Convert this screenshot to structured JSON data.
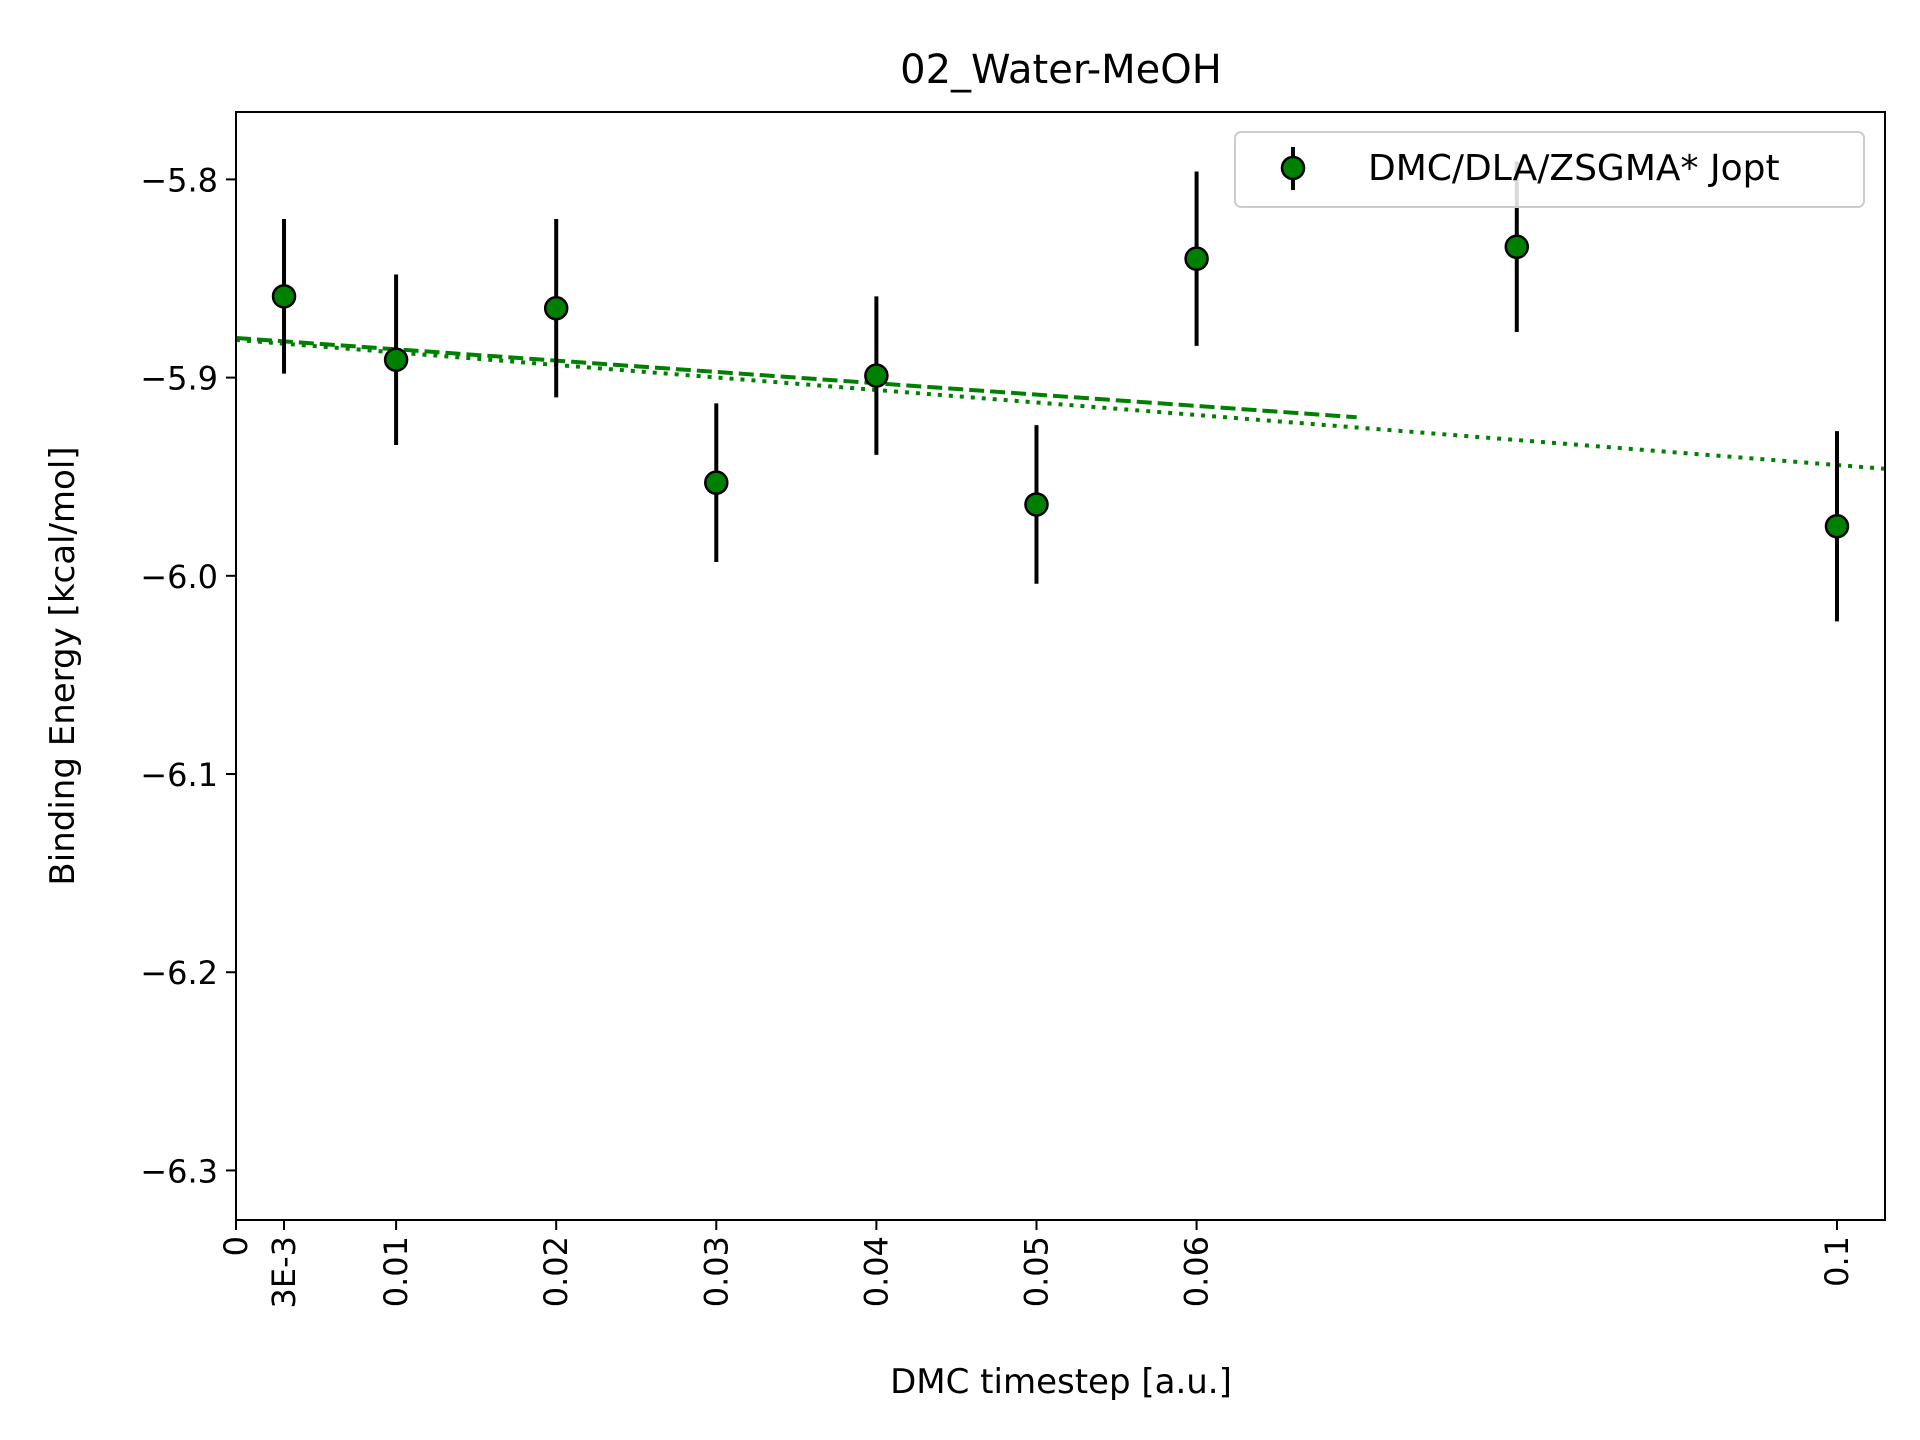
{
  "chart_data": {
    "type": "scatter",
    "title": "02_Water-MeOH",
    "xlabel": "DMC timestep [a.u.]",
    "ylabel": "Binding Energy [kcal/mol]",
    "xlim": [
      0,
      0.103
    ],
    "ylim": [
      -6.325,
      -5.766
    ],
    "grid": false,
    "legend_position": "top-right",
    "x_ticks": [
      {
        "value": 0,
        "label": "0"
      },
      {
        "value": 0.003,
        "label": "3E-3"
      },
      {
        "value": 0.01,
        "label": "0.01"
      },
      {
        "value": 0.02,
        "label": "0.02"
      },
      {
        "value": 0.03,
        "label": "0.03"
      },
      {
        "value": 0.04,
        "label": "0.04"
      },
      {
        "value": 0.05,
        "label": "0.05"
      },
      {
        "value": 0.06,
        "label": "0.06"
      },
      {
        "value": 0.1,
        "label": "0.1"
      }
    ],
    "y_ticks": [
      {
        "value": -5.8,
        "label": "−5.8"
      },
      {
        "value": -5.9,
        "label": "−5.9"
      },
      {
        "value": -6.0,
        "label": "−6.0"
      },
      {
        "value": -6.1,
        "label": "−6.1"
      },
      {
        "value": -6.2,
        "label": "−6.2"
      },
      {
        "value": -6.3,
        "label": "−6.3"
      }
    ],
    "series": [
      {
        "name": "DMC/DLA/ZSGMA* Jopt",
        "color": "#008000",
        "marker_edge_color": "#000000",
        "errorbar_color": "#000000",
        "points": [
          {
            "x": 0.003,
            "y": -5.859,
            "err": 0.039
          },
          {
            "x": 0.01,
            "y": -5.891,
            "err": 0.043
          },
          {
            "x": 0.02,
            "y": -5.865,
            "err": 0.045
          },
          {
            "x": 0.03,
            "y": -5.953,
            "err": 0.04
          },
          {
            "x": 0.04,
            "y": -5.899,
            "err": 0.04
          },
          {
            "x": 0.05,
            "y": -5.964,
            "err": 0.04
          },
          {
            "x": 0.06,
            "y": -5.84,
            "err": 0.044
          },
          {
            "x": 0.08,
            "y": -5.834,
            "err": 0.043
          },
          {
            "x": 0.1,
            "y": -5.975,
            "err": 0.048
          }
        ]
      }
    ],
    "fit_lines": [
      {
        "style": "dashed",
        "color": "#008000",
        "x": [
          0,
          0.07
        ],
        "y": [
          -5.88,
          -5.92
        ]
      },
      {
        "style": "dotted",
        "color": "#008000",
        "x": [
          0,
          0.103
        ],
        "y": [
          -5.881,
          -5.946
        ]
      }
    ]
  }
}
